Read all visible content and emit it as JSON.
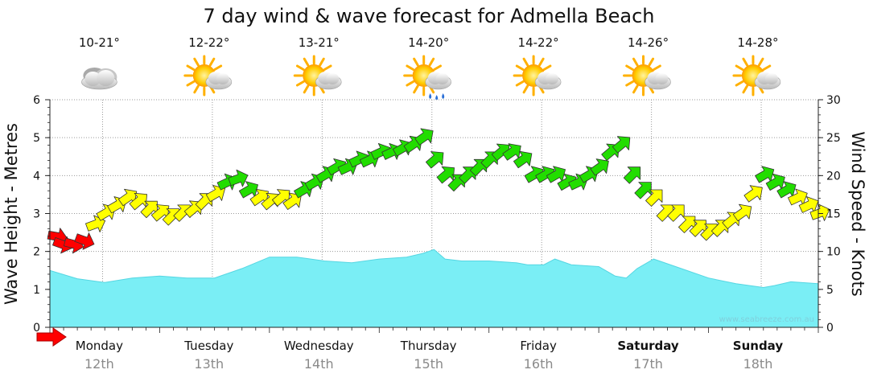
{
  "title": "7 day wind & wave forecast for Admella Beach",
  "credit": "www.seabreeze.com.au",
  "colors": {
    "wave_fill": "#7aeef5",
    "wave_edge": "#55d6e2",
    "wind_strong": "#ff0000",
    "wind_moderate": "#22dd00",
    "wind_light": "#ffff00"
  },
  "days": [
    {
      "name": "Monday",
      "date": "12th",
      "temp": "10-21°",
      "weather": "cloudy-icon",
      "weekend": false
    },
    {
      "name": "Tuesday",
      "date": "13th",
      "temp": "12-22°",
      "weather": "partly-cloudy-icon",
      "weekend": false
    },
    {
      "name": "Wednesday",
      "date": "14th",
      "temp": "13-21°",
      "weather": "partly-cloudy-icon",
      "weekend": false
    },
    {
      "name": "Thursday",
      "date": "15th",
      "temp": "14-20°",
      "weather": "showers-icon",
      "weekend": false
    },
    {
      "name": "Friday",
      "date": "16th",
      "temp": "14-22°",
      "weather": "partly-cloudy-icon",
      "weekend": false
    },
    {
      "name": "Saturday",
      "date": "17th",
      "temp": "14-26°",
      "weather": "partly-cloudy-icon",
      "weekend": true
    },
    {
      "name": "Sunday",
      "date": "18th",
      "temp": "14-28°",
      "weather": "partly-cloudy-icon",
      "weekend": true
    }
  ],
  "chart_data": {
    "type": "area",
    "title": "7 day wind & wave forecast for Admella Beach",
    "ylabel": "Wave Height - Metres",
    "y2label": "Wind Speed - Knots",
    "ylim": [
      0,
      6
    ],
    "y2lim": [
      0,
      30
    ],
    "yticks": [
      "0",
      "1",
      "2",
      "3",
      "4",
      "5",
      "6"
    ],
    "y2ticks": [
      "0",
      "5",
      "10",
      "15",
      "20",
      "25",
      "30"
    ],
    "xlim_days": [
      0,
      7
    ],
    "grid": true,
    "series": [
      {
        "kind": "wave_height",
        "axis": "left",
        "x": [
          0,
          0.25,
          0.5,
          0.75,
          1,
          1.25,
          1.5,
          1.75,
          2,
          2.25,
          2.5,
          2.75,
          3,
          3.25,
          3.4,
          3.5,
          3.6,
          3.75,
          4,
          4.25,
          4.35,
          4.5,
          4.6,
          4.75,
          5,
          5.15,
          5.25,
          5.35,
          5.5,
          5.75,
          6,
          6.25,
          6.5,
          6.6,
          6.75,
          7
        ],
        "values": [
          1.5,
          1.28,
          1.18,
          1.3,
          1.35,
          1.3,
          1.3,
          1.55,
          1.85,
          1.85,
          1.75,
          1.7,
          1.8,
          1.85,
          1.95,
          2.05,
          1.8,
          1.75,
          1.75,
          1.7,
          1.65,
          1.65,
          1.8,
          1.65,
          1.6,
          1.35,
          1.3,
          1.55,
          1.8,
          1.55,
          1.3,
          1.15,
          1.05,
          1.1,
          1.2,
          1.15
        ]
      },
      {
        "kind": "wind_speed",
        "axis": "right",
        "x": [
          0.05,
          0.1,
          0.2,
          0.3,
          0.4,
          0.5,
          0.6,
          0.7,
          0.8,
          0.9,
          1.0,
          1.1,
          1.2,
          1.3,
          1.4,
          1.5,
          1.6,
          1.7,
          1.8,
          1.9,
          2.0,
          2.1,
          2.2,
          2.3,
          2.4,
          2.5,
          2.6,
          2.7,
          2.8,
          2.9,
          3.0,
          3.1,
          3.2,
          3.3,
          3.4,
          3.5,
          3.6,
          3.7,
          3.8,
          3.9,
          4.0,
          4.1,
          4.2,
          4.3,
          4.4,
          4.5,
          4.6,
          4.7,
          4.8,
          4.9,
          5.0,
          5.1,
          5.2,
          5.3,
          5.4,
          5.5,
          5.6,
          5.7,
          5.8,
          5.9,
          6.0,
          6.1,
          6.2,
          6.3,
          6.4,
          6.5,
          6.6,
          6.7,
          6.8,
          6.9,
          7.0
        ],
        "values": [
          12,
          11,
          11,
          11.5,
          13.5,
          15,
          16,
          17,
          16.5,
          15.5,
          15,
          14.5,
          15,
          15.5,
          16.5,
          17.5,
          19,
          19.5,
          18,
          17,
          16.5,
          17,
          16.5,
          18,
          19,
          20,
          21,
          21,
          22,
          22,
          23,
          23,
          23.5,
          24,
          25,
          22,
          20,
          19,
          20,
          21,
          22,
          23,
          23,
          22,
          20,
          20,
          20,
          19,
          19,
          20,
          21,
          23,
          24,
          20,
          18,
          17,
          15,
          15,
          13.5,
          13,
          12.5,
          13,
          14,
          15,
          17.5,
          20,
          19,
          18,
          17,
          16,
          15
        ],
        "directions_deg": [
          350,
          340,
          345,
          340,
          20,
          30,
          30,
          35,
          40,
          45,
          40,
          45,
          45,
          40,
          45,
          30,
          25,
          20,
          30,
          35,
          40,
          40,
          35,
          30,
          30,
          30,
          30,
          25,
          25,
          25,
          25,
          25,
          30,
          35,
          35,
          40,
          40,
          45,
          45,
          45,
          45,
          40,
          35,
          35,
          30,
          30,
          30,
          30,
          25,
          30,
          35,
          40,
          40,
          45,
          45,
          45,
          45,
          45,
          45,
          45,
          45,
          45,
          40,
          35,
          35,
          30,
          30,
          30,
          25,
          25,
          20
        ],
        "color_bands": [
          {
            "label": "strong",
            "min": 0,
            "color_key": "wind_strong"
          },
          {
            "label": "moderate",
            "min": 0,
            "color_key": "wind_moderate"
          },
          {
            "label": "light",
            "min": 0,
            "color_key": "wind_light"
          }
        ]
      }
    ]
  }
}
